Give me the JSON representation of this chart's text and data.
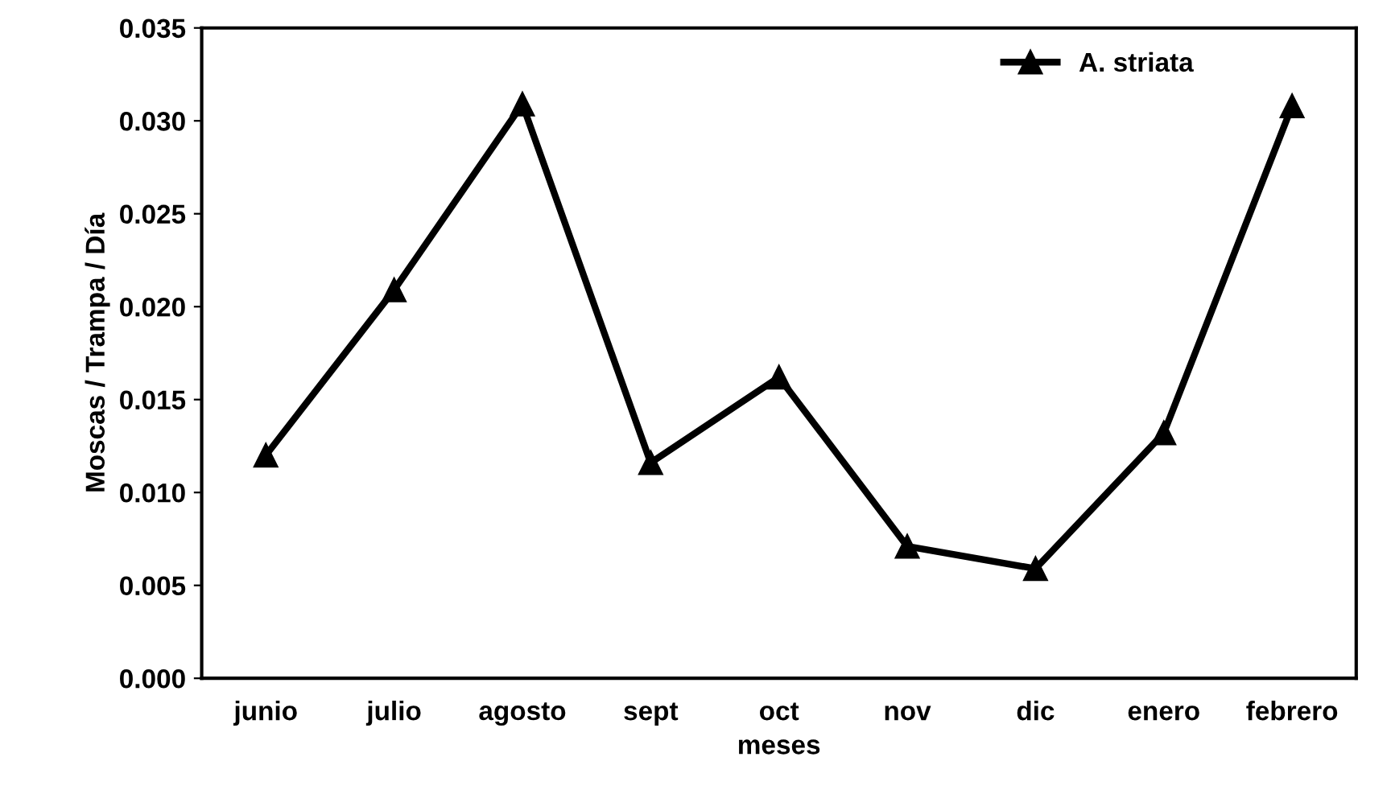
{
  "chart_data": {
    "type": "line",
    "xlabel": "meses",
    "ylabel": "Moscas / Trampa / Día",
    "categories": [
      "junio",
      "julio",
      "agosto",
      "sept",
      "oct",
      "nov",
      "dic",
      "enero",
      "febrero"
    ],
    "series": [
      {
        "name": "A. striata",
        "color": "#000000",
        "values": [
          0.012,
          0.0209,
          0.0309,
          0.0116,
          0.0162,
          0.0071,
          0.0059,
          0.0132,
          0.0308
        ]
      }
    ],
    "ylim": [
      0,
      0.035
    ],
    "yticks": [
      {
        "value": 0,
        "label": "0.000"
      },
      {
        "value": 0.005,
        "label": "0.005"
      },
      {
        "value": 0.01,
        "label": "0.010"
      },
      {
        "value": 0.015,
        "label": "0.015"
      },
      {
        "value": 0.02,
        "label": "0.020"
      },
      {
        "value": 0.025,
        "label": "0.025"
      },
      {
        "value": 0.03,
        "label": "0.030"
      },
      {
        "value": 0.035,
        "label": "0.035"
      }
    ],
    "marker": "triangle",
    "line_style": "solid",
    "grid": false,
    "legend": "top right"
  }
}
